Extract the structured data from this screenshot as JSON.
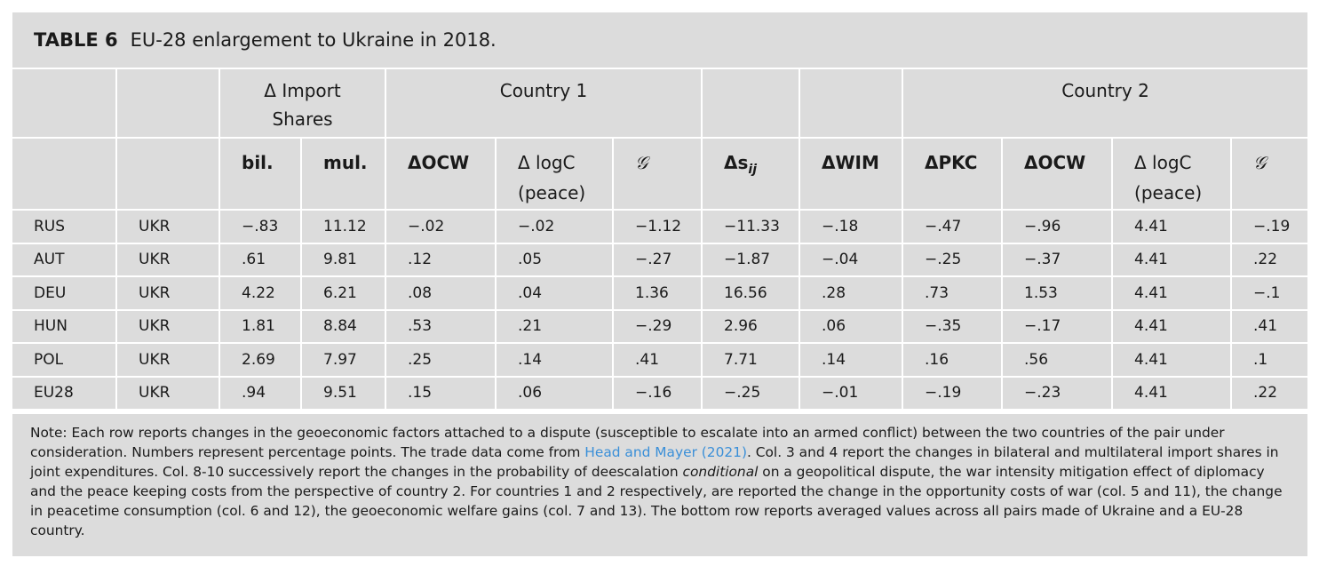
{
  "title": {
    "label": "TABLE 6",
    "text": "EU-28 enlargement to Ukraine in 2018."
  },
  "header1": {
    "import_shares": "Δ Import Shares",
    "country1": "Country 1",
    "country2": "Country 2"
  },
  "header2": [
    "",
    "",
    "bil.",
    "mul.",
    "ΔOCW",
    "Δ logC (peace)",
    "𝒢",
    "Δs_ij",
    "ΔWIM",
    "ΔPKC",
    "ΔOCW",
    "Δ logC (peace)",
    "𝒢"
  ],
  "rows": [
    [
      "RUS",
      "UKR",
      "−.83",
      "11.12",
      "−.02",
      "−.02",
      "−1.12",
      "−11.33",
      "−.18",
      "−.47",
      "−.96",
      "4.41",
      "−.19"
    ],
    [
      "AUT",
      "UKR",
      ".61",
      "9.81",
      ".12",
      ".05",
      "−.27",
      "−1.87",
      "−.04",
      "−.25",
      "−.37",
      "4.41",
      ".22"
    ],
    [
      "DEU",
      "UKR",
      "4.22",
      "6.21",
      ".08",
      ".04",
      "1.36",
      "16.56",
      ".28",
      ".73",
      "1.53",
      "4.41",
      "−.1"
    ],
    [
      "HUN",
      "UKR",
      "1.81",
      "8.84",
      ".53",
      ".21",
      "−.29",
      "2.96",
      ".06",
      "−.35",
      "−.17",
      "4.41",
      ".41"
    ],
    [
      "POL",
      "UKR",
      "2.69",
      "7.97",
      ".25",
      ".14",
      ".41",
      "7.71",
      ".14",
      ".16",
      ".56",
      "4.41",
      ".1"
    ],
    [
      "EU28",
      "UKR",
      ".94",
      "9.51",
      ".15",
      ".06",
      "−.16",
      "−.25",
      "−.01",
      "−.19",
      "−.23",
      "4.41",
      ".22"
    ]
  ],
  "note": {
    "part1": "Note: Each row reports changes in the geoeconomic factors attached to a dispute (susceptible to escalate into an armed conflict) between the two countries of the pair under consideration. Numbers represent percentage points. The trade data come from ",
    "link": "Head and Mayer (2021)",
    "part2": ". Col. 3 and 4 report the changes in bilateral and multilateral import shares in joint expenditures. Col. 8-10 successively report the changes in the probability of deescalation ",
    "italic": "conditional",
    "part3": " on a geopolitical dispute, the war intensity mitigation effect of diplomacy and the peace keeping costs from the perspective of country 2. For countries 1 and 2 respectively, are reported the change in the opportunity costs of war (col. 5 and 11), the change in peacetime consumption (col. 6 and 12), the geoeconomic welfare gains (col. 7 and 13). The bottom row reports averaged values across all pairs made of Ukraine and a EU-28 country."
  },
  "colors": {
    "cell_bg": "#dcdcdc",
    "link": "#3a8fd8"
  }
}
